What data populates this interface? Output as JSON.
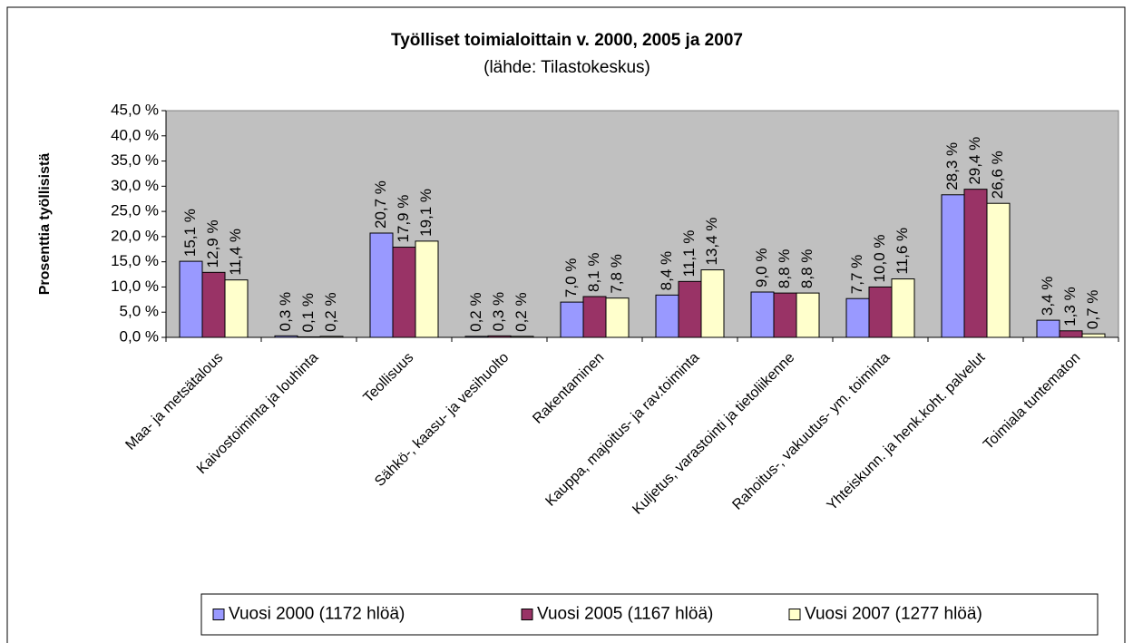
{
  "chart_data": {
    "type": "bar",
    "title": "Työlliset toimialoittain v. 2000, 2005 ja 2007",
    "subtitle": "(lähde: Tilastokeskus)",
    "y_label": "Prosenttia työllisistä",
    "categories": [
      "Maa- ja metsätalous",
      "Kaivostoiminta ja louhinta",
      "Teollisuus",
      "Sähkö-, kaasu- ja vesihuolto",
      "Rakentaminen",
      "Kauppa, majoitus- ja rav.toiminta",
      "Kuljetus, varastointi ja tietoliikenne",
      "Rahoitus-, vakuutus- ym. toiminta",
      "Yhteiskunn. ja henk.koht. palvelut",
      "Toimiala tuntematon"
    ],
    "series": [
      {
        "name": "Vuosi 2000 (1172 hlöä)",
        "color": "#9999ff",
        "values": [
          15.1,
          0.3,
          20.7,
          0.2,
          7.0,
          8.4,
          9.0,
          7.7,
          28.3,
          3.4
        ],
        "value_labels": [
          "15,1 %",
          "0,3 %",
          "20,7 %",
          "0,2 %",
          "7,0 %",
          "8,4 %",
          "9,0 %",
          "7,7 %",
          "28,3 %",
          "3,4 %"
        ]
      },
      {
        "name": "Vuosi 2005 (1167 hlöä)",
        "color": "#993366",
        "values": [
          12.9,
          0.1,
          17.9,
          0.3,
          8.1,
          11.1,
          8.8,
          10.0,
          29.4,
          1.3
        ],
        "value_labels": [
          "12,9 %",
          "0,1 %",
          "17,9 %",
          "0,3 %",
          "8,1 %",
          "11,1 %",
          "8,8 %",
          "10,0 %",
          "29,4 %",
          "1,3 %"
        ]
      },
      {
        "name": "Vuosi 2007 (1277 hlöä)",
        "color": "#ffffcc",
        "values": [
          11.4,
          0.2,
          19.1,
          0.2,
          7.8,
          13.4,
          8.8,
          11.6,
          26.6,
          0.7
        ],
        "value_labels": [
          "11,4 %",
          "0,2 %",
          "19,1 %",
          "0,2 %",
          "7,8 %",
          "13,4 %",
          "8,8 %",
          "11,6 %",
          "26,6 %",
          "0,7 %"
        ]
      }
    ],
    "ylim": [
      0,
      45
    ],
    "yticks": [
      {
        "value": 0,
        "label": "0,0 %"
      },
      {
        "value": 5,
        "label": "5,0 %"
      },
      {
        "value": 10,
        "label": "10,0 %"
      },
      {
        "value": 15,
        "label": "15,0 %"
      },
      {
        "value": 20,
        "label": "20,0 %"
      },
      {
        "value": 25,
        "label": "25,0 %"
      },
      {
        "value": 30,
        "label": "30,0 %"
      },
      {
        "value": 35,
        "label": "35,0 %"
      },
      {
        "value": 40,
        "label": "40,0 %"
      },
      {
        "value": 45,
        "label": "45,0 %"
      }
    ],
    "legend": "bottom",
    "plot_background": "#c0c0c0",
    "grid": false
  }
}
